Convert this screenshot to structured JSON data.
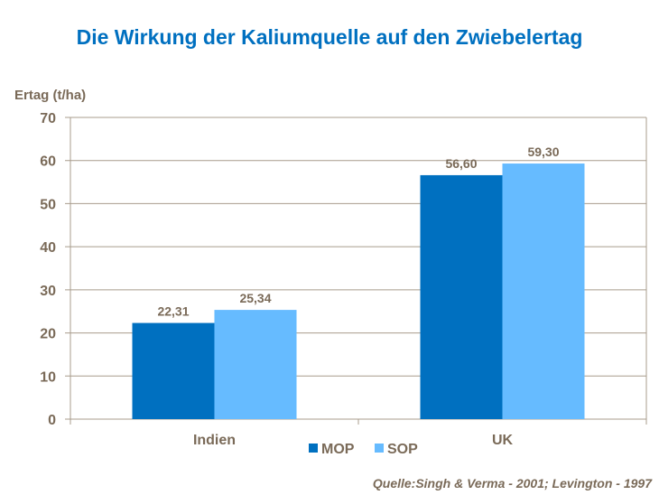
{
  "chart_data": {
    "type": "bar",
    "title": "Die Wirkung der Kaliumquelle auf den Zwiebelertag",
    "ylabel": "Ertag (t/ha)",
    "xlabel": "",
    "ylim": [
      0,
      70
    ],
    "yticks": [
      0,
      10,
      20,
      30,
      40,
      50,
      60,
      70
    ],
    "grid": true,
    "legend": "bottom",
    "categories": [
      "Indien",
      "UK"
    ],
    "series": [
      {
        "name": "MOP",
        "values": [
          22.31,
          56.6
        ],
        "labels": [
          "22,31",
          "56,60"
        ],
        "color": "#0070c0"
      },
      {
        "name": "SOP",
        "values": [
          25.34,
          59.3
        ],
        "labels": [
          "25,34",
          "59,30"
        ],
        "color": "#66bbff"
      }
    ]
  },
  "source": "Quelle:Singh & Verma -  2001; Levington - 1997"
}
